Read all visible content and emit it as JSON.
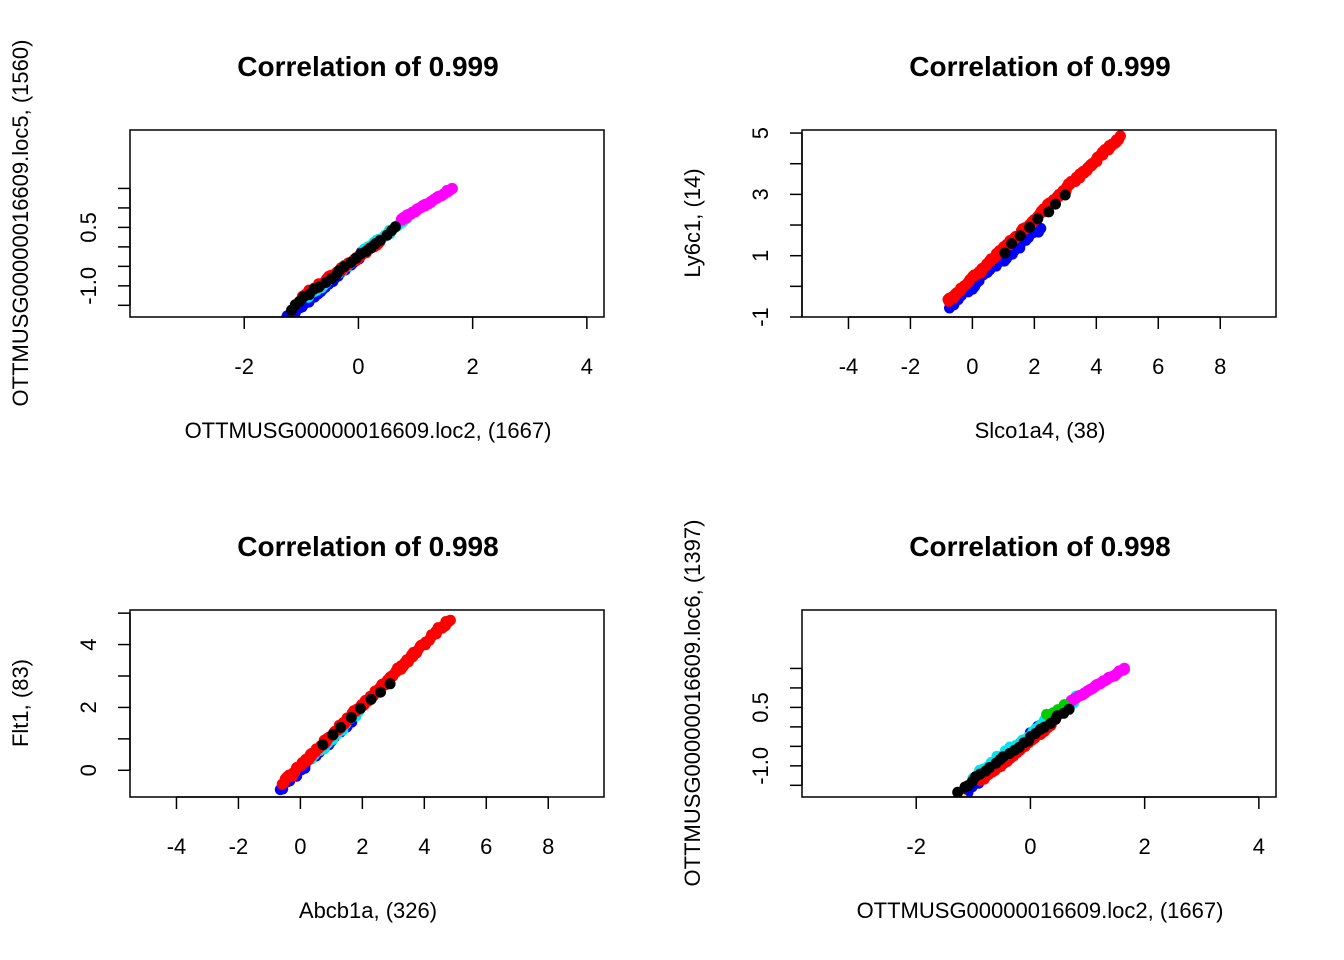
{
  "chart_data": [
    {
      "type": "scatter",
      "title": "Correlation of 0.999",
      "xlabel": "OTTMUSG00000016609.loc2, (1667)",
      "ylabel": "OTTMUSG00000016609.loc5, (1560)",
      "xlim": [
        -4,
        4.3
      ],
      "ylim": [
        -1.8,
        3.0
      ],
      "xticks": [
        -2,
        0,
        2,
        4
      ],
      "yticks": [
        -1.5,
        -1.0,
        -0.5,
        0.0,
        0.5,
        1.0,
        1.5
      ],
      "ytick_labels": [
        "",
        "-1.0",
        "",
        "",
        "0.5",
        "",
        ""
      ],
      "grid": false,
      "series": [
        {
          "color": "#0000ff",
          "x0": -1.3,
          "x1": 0.3,
          "y0": -1.9,
          "y1": 0.1,
          "n": 60,
          "jitter": 0.04
        },
        {
          "color": "#00e5ee",
          "x0": -0.9,
          "x1": 0.85,
          "y0": -1.3,
          "y1": 0.75,
          "n": 45,
          "jitter": 0.04
        },
        {
          "color": "#ff00ff",
          "x0": 0.75,
          "x1": 1.65,
          "y0": 0.7,
          "y1": 1.5,
          "n": 45,
          "jitter": 0.02
        },
        {
          "color": "#ff0000",
          "x0": -1.0,
          "x1": 0.35,
          "y0": -1.3,
          "y1": 0.1,
          "n": 70,
          "jitter": 0.03
        },
        {
          "color": "#000000",
          "x0": -1.2,
          "x1": 0.65,
          "y0": -1.6,
          "y1": 0.5,
          "n": 22,
          "jitter": 0.03
        }
      ]
    },
    {
      "type": "scatter",
      "title": "Correlation of 0.999",
      "xlabel": "Slco1a4, (38)",
      "ylabel": "Ly6c1, (14)",
      "xlim": [
        -5.5,
        9.8
      ],
      "ylim": [
        -1,
        5.1
      ],
      "xticks": [
        -4,
        -2,
        0,
        2,
        4,
        6,
        8
      ],
      "yticks": [
        -1,
        0,
        1,
        2,
        3,
        4,
        5
      ],
      "ytick_labels": [
        "-1",
        "",
        "1",
        "",
        "3",
        "",
        "5"
      ],
      "grid": false,
      "series": [
        {
          "color": "#0000ff",
          "x0": -0.75,
          "x1": 2.2,
          "y0": -0.65,
          "y1": 1.9,
          "n": 30,
          "jitter": 0.06
        },
        {
          "color": "#ff0000",
          "x0": -0.8,
          "x1": 4.8,
          "y0": -0.5,
          "y1": 4.9,
          "n": 140,
          "jitter": 0.05
        },
        {
          "color": "#000000",
          "x0": 1.0,
          "x1": 3.0,
          "y0": 1.1,
          "y1": 3.0,
          "n": 8,
          "jitter": 0.05
        }
      ]
    },
    {
      "type": "scatter",
      "title": "Correlation of 0.998",
      "xlabel": "Abcb1a, (326)",
      "ylabel": "Flt1, (83)",
      "xlim": [
        -5.5,
        9.8
      ],
      "ylim": [
        -0.85,
        5.1
      ],
      "xticks": [
        -4,
        -2,
        0,
        2,
        4,
        6,
        8
      ],
      "yticks": [
        0,
        1,
        2,
        3,
        4,
        5
      ],
      "ytick_labels": [
        "0",
        "",
        "2",
        "",
        "4",
        ""
      ],
      "grid": false,
      "series": [
        {
          "color": "#0000ff",
          "x0": -0.7,
          "x1": 1.6,
          "y0": -0.65,
          "y1": 1.5,
          "n": 30,
          "jitter": 0.06
        },
        {
          "color": "#00e5ee",
          "x0": 0.3,
          "x1": 1.9,
          "y0": 0.3,
          "y1": 1.9,
          "n": 12,
          "jitter": 0.06
        },
        {
          "color": "#ff0000",
          "x0": -0.6,
          "x1": 4.8,
          "y0": -0.45,
          "y1": 4.8,
          "n": 140,
          "jitter": 0.05
        },
        {
          "color": "#000000",
          "x0": 0.7,
          "x1": 2.9,
          "y0": 0.8,
          "y1": 2.8,
          "n": 8,
          "jitter": 0.05
        }
      ]
    },
    {
      "type": "scatter",
      "title": "Correlation of 0.998",
      "xlabel": "OTTMUSG00000016609.loc2, (1667)",
      "ylabel": "OTTMUSG00000016609.loc6, (1397)",
      "xlim": [
        -4,
        4.3
      ],
      "ylim": [
        -1.8,
        3.0
      ],
      "xticks": [
        -2,
        0,
        2,
        4
      ],
      "yticks": [
        -1.5,
        -1.0,
        -0.5,
        0.0,
        0.5,
        1.0,
        1.5
      ],
      "ytick_labels": [
        "",
        "-1.0",
        "",
        "",
        "0.5",
        "",
        ""
      ],
      "grid": false,
      "series": [
        {
          "color": "#0000ff",
          "x0": -1.3,
          "x1": 0.2,
          "y0": -1.9,
          "y1": 0.05,
          "n": 50,
          "jitter": 0.04
        },
        {
          "color": "#00e5ee",
          "x0": -1.0,
          "x1": 0.85,
          "y0": -1.3,
          "y1": 0.8,
          "n": 50,
          "jitter": 0.05
        },
        {
          "color": "#ff00ff",
          "x0": 0.7,
          "x1": 1.65,
          "y0": 0.65,
          "y1": 1.5,
          "n": 45,
          "jitter": 0.02
        },
        {
          "color": "#00cd00",
          "x0": 0.3,
          "x1": 0.6,
          "y0": 0.3,
          "y1": 0.55,
          "n": 4,
          "jitter": 0.03
        },
        {
          "color": "#ffd700",
          "x0": -1.3,
          "x1": -1.2,
          "y0": -1.95,
          "y1": -1.85,
          "n": 2,
          "jitter": 0.01
        },
        {
          "color": "#ff0000",
          "x0": -0.85,
          "x1": 0.35,
          "y0": -1.35,
          "y1": 0.05,
          "n": 70,
          "jitter": 0.03
        },
        {
          "color": "#000000",
          "x0": -1.25,
          "x1": 0.65,
          "y0": -1.65,
          "y1": 0.45,
          "n": 25,
          "jitter": 0.03
        }
      ]
    }
  ]
}
